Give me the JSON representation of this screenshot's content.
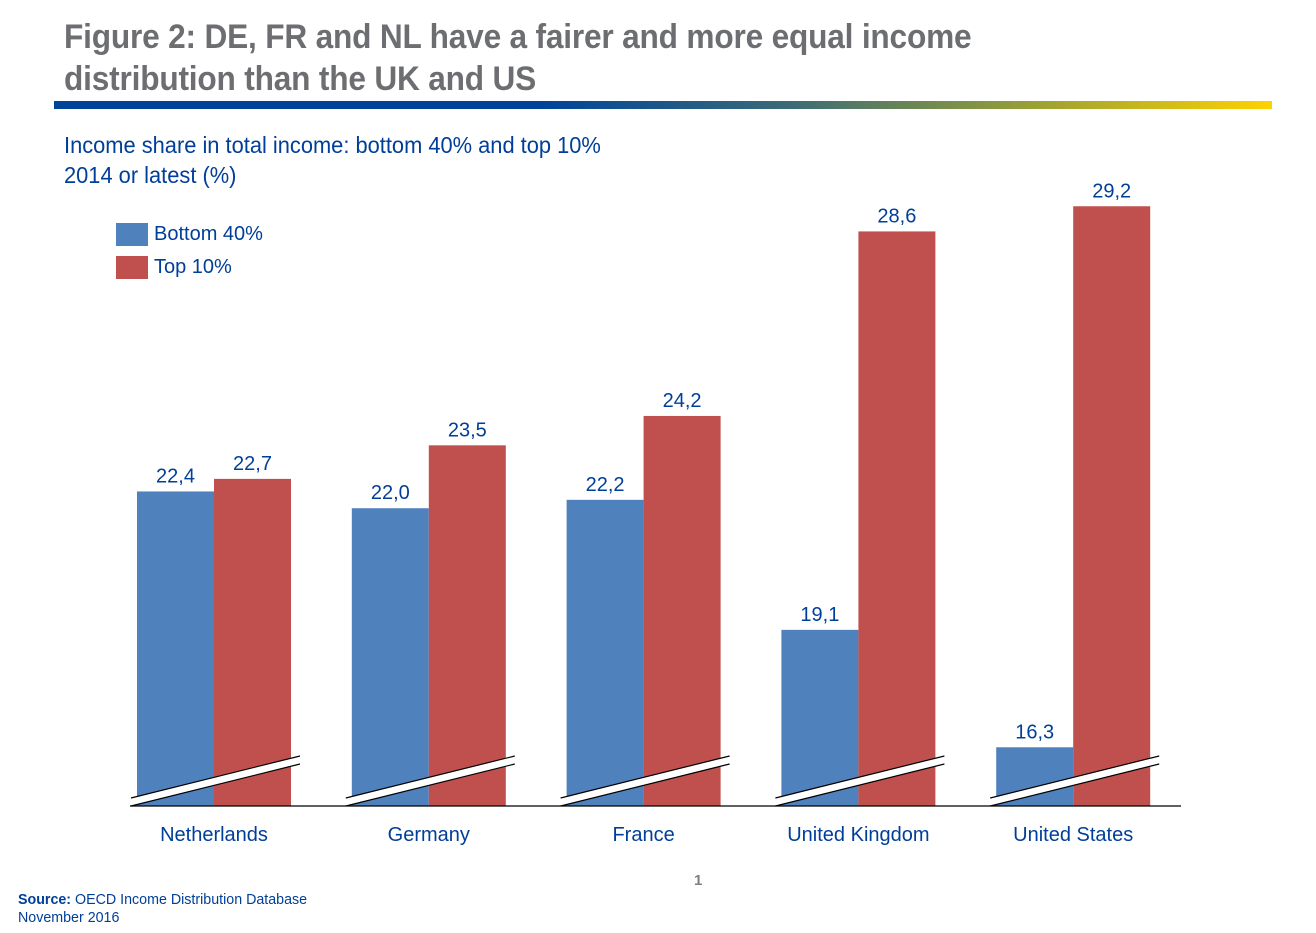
{
  "header": {
    "title_line1": "Figure 2: DE, FR and NL have a fairer and more equal income",
    "title_line2": "distribution than the UK and US"
  },
  "subtitle": {
    "line1": "Income share in total income: bottom 40% and top 10%",
    "line2": "2014 or latest (%)"
  },
  "colors": {
    "bottom40": "#4f81bd",
    "top10": "#c0504d",
    "label": "#003f99",
    "title": "#6d6e71"
  },
  "chart_data": {
    "type": "bar",
    "title": "Income share in total income: bottom 40% and top 10%, 2014 or latest (%)",
    "xlabel": "",
    "ylabel": "",
    "categories": [
      "Netherlands",
      "Germany",
      "France",
      "United Kingdom",
      "United States"
    ],
    "series": [
      {
        "name": "Bottom 40%",
        "values": [
          22.4,
          22.0,
          22.2,
          19.1,
          16.3
        ],
        "labels": [
          "22,4",
          "22,0",
          "22,2",
          "19,1",
          "16,3"
        ]
      },
      {
        "name": "Top 10%",
        "values": [
          22.7,
          23.5,
          24.2,
          28.6,
          29.2
        ],
        "labels": [
          "22,7",
          "23,5",
          "24,2",
          "28,6",
          "29,2"
        ]
      }
    ],
    "axis_break": true,
    "y_axis_start_approx": 14.9,
    "ylim": [
      14.9,
      30
    ],
    "grid": false,
    "legend": "top-left",
    "decimal_separator": ","
  },
  "legend": {
    "items": [
      {
        "label": "Bottom 40%"
      },
      {
        "label": "Top 10%"
      }
    ]
  },
  "footer": {
    "source_label": "Source:",
    "source_text": " OECD Income Distribution Database",
    "date": "November 2016",
    "page_number": "1"
  }
}
